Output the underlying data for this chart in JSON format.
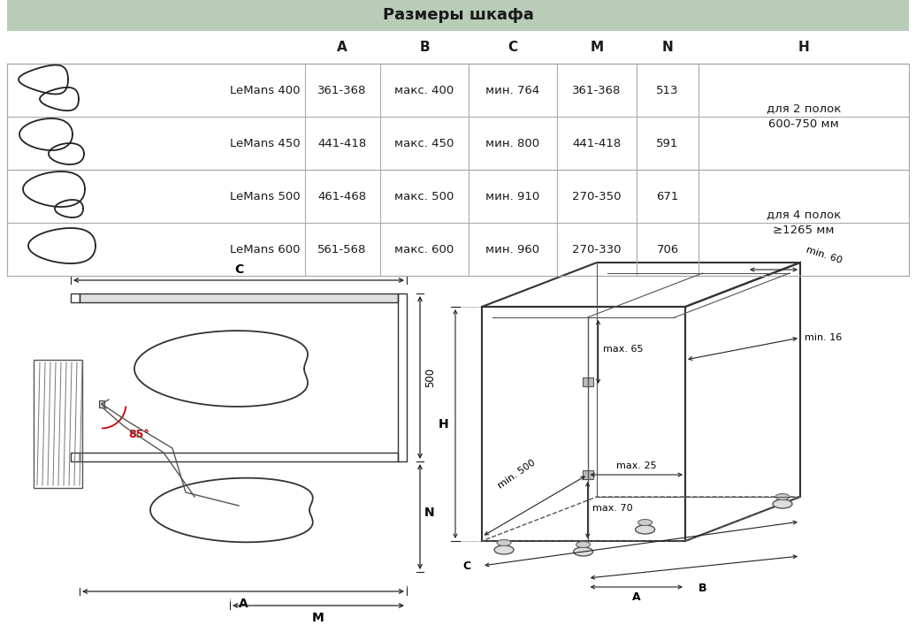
{
  "title": "Размеры шкафа",
  "title_bg": "#b8ccb8",
  "bg_color": "#ffffff",
  "table_headers": [
    "A",
    "B",
    "C",
    "M",
    "N",
    "H"
  ],
  "table_rows": [
    [
      "LeMans 400",
      "361-368",
      "макс. 400",
      "мин. 764",
      "361-368",
      "513",
      "для 2 полок\n600-750 мм"
    ],
    [
      "LeMans 450",
      "441-418",
      "макс. 450",
      "мин. 800",
      "441-418",
      "591",
      ""
    ],
    [
      "LeMans 500",
      "461-468",
      "макс. 500",
      "мин. 910",
      "270-350",
      "671",
      "для 4 полок\n≥1265 мм"
    ],
    [
      "LeMans 600",
      "561-568",
      "макс. 600",
      "мин. 960",
      "270-330",
      "706",
      ""
    ]
  ],
  "line_color": "#555555",
  "dim_color": "#222222",
  "red_color": "#cc0000",
  "font_main": 9.5,
  "font_header": 11,
  "font_title": 13
}
